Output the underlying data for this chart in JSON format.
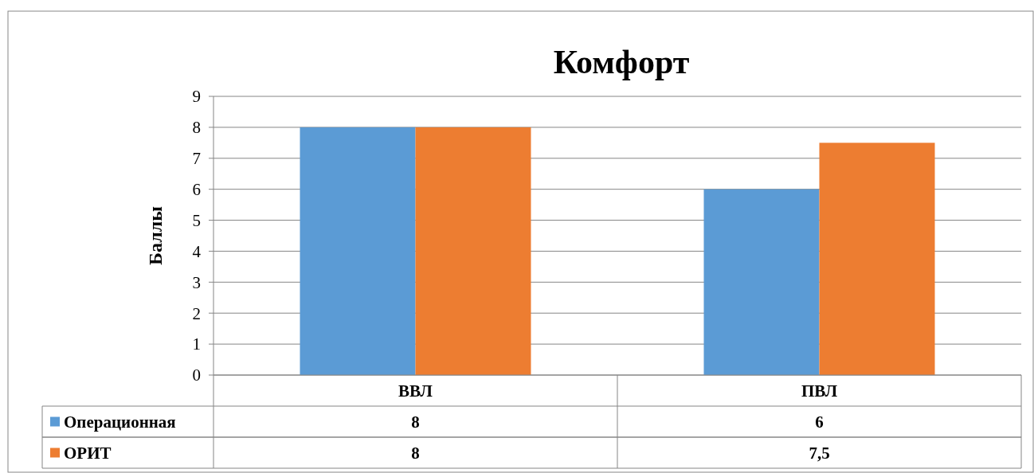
{
  "chart_data": {
    "type": "bar",
    "title": "Комфорт",
    "ylabel": "Баллы",
    "categories": [
      "ВВЛ",
      "ПВЛ"
    ],
    "series": [
      {
        "name": "Операционная",
        "color": "#5b9bd5",
        "values": [
          8,
          6
        ],
        "value_labels": [
          "8",
          "6"
        ]
      },
      {
        "name": "ОРИТ",
        "color": "#ed7d31",
        "values": [
          8,
          7.5
        ],
        "value_labels": [
          "8",
          "7,5"
        ]
      }
    ],
    "ylim": [
      0,
      9
    ],
    "yticks": [
      0,
      1,
      2,
      3,
      4,
      5,
      6,
      7,
      8,
      9
    ],
    "grid": "y",
    "legend": "bottom"
  }
}
